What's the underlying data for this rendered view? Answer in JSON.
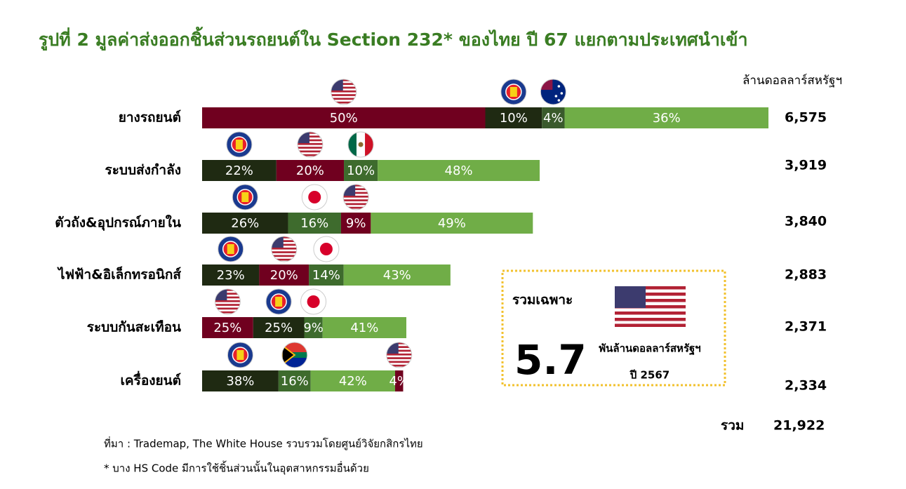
{
  "chart_data": {
    "type": "bar",
    "orientation": "horizontal",
    "stacked": true,
    "title": "รูปที่ 2 มูลค่าส่งออกชิ้นส่วนรถยนต์ใน Section 232* ของไทย ปี 67 แยกตามประเทศนำเข้า",
    "unit_label": "ล้านดอลลาร์สหรัฐฯ",
    "categories": [
      "ยางรถยนต์",
      "ระบบส่งกำลัง",
      "ตัวถัง&อุปกรณ์ภายใน",
      "ไฟฟ้า&อิเล็กทรอนิกส์",
      "ระบบกันสะเทือน",
      "เครื่องยนต์"
    ],
    "values": [
      6575,
      3919,
      3840,
      2883,
      2371,
      2334
    ],
    "value_labels": [
      "6,575",
      "3,919",
      "3,840",
      "2,883",
      "2,371",
      "2,334"
    ],
    "segments": [
      {
        "values": [
          50,
          10,
          4,
          36
        ],
        "value_labels": [
          "50%",
          "10%",
          "4%",
          "36%"
        ],
        "colors": [
          "#70001f",
          "#1f2a12",
          "#3a5a2c",
          "#70ad47"
        ]
      },
      {
        "values": [
          22,
          20,
          10,
          48
        ],
        "value_labels": [
          "22%",
          "20%",
          "10%",
          "48%"
        ],
        "colors": [
          "#1f2a12",
          "#70001f",
          "#3e6b2d",
          "#70ad47"
        ]
      },
      {
        "values": [
          26,
          16,
          9,
          49
        ],
        "value_labels": [
          "26%",
          "16%",
          "9%",
          "49%"
        ],
        "colors": [
          "#1f2a12",
          "#3e6b2d",
          "#70001f",
          "#70ad47"
        ]
      },
      {
        "values": [
          23,
          20,
          14,
          43
        ],
        "value_labels": [
          "23%",
          "20%",
          "14%",
          "43%"
        ],
        "colors": [
          "#1f2a12",
          "#70001f",
          "#3e6b2d",
          "#70ad47"
        ]
      },
      {
        "values": [
          25,
          25,
          9,
          41
        ],
        "value_labels": [
          "25%",
          "25%",
          "9%",
          "41%"
        ],
        "colors": [
          "#70001f",
          "#1f2a12",
          "#3e6b2d",
          "#70ad47"
        ]
      },
      {
        "values": [
          38,
          16,
          42,
          4
        ],
        "value_labels": [
          "38%",
          "16%",
          "42%",
          "4%"
        ],
        "colors": [
          "#1f2a12",
          "#3e6b2d",
          "#70ad47",
          "#70001f"
        ]
      }
    ],
    "sum_label": "รวม",
    "sum": 21922,
    "sum_value_label": "21,922",
    "callout": {
      "title": "รวมเฉพาะ",
      "value": 5.7,
      "unit": "พันล้านดอลลาร์สหรัฐฯ",
      "year": "ปี 2567"
    },
    "source": "ที่มา : Trademap, The White House รวบรวมโดยศูนย์วิจัยกสิกรไทย",
    "note": "* บาง HS Code มีการใช้ชิ้นส่วนนั้นในอุตสาหกรรมอื่นด้วย"
  }
}
